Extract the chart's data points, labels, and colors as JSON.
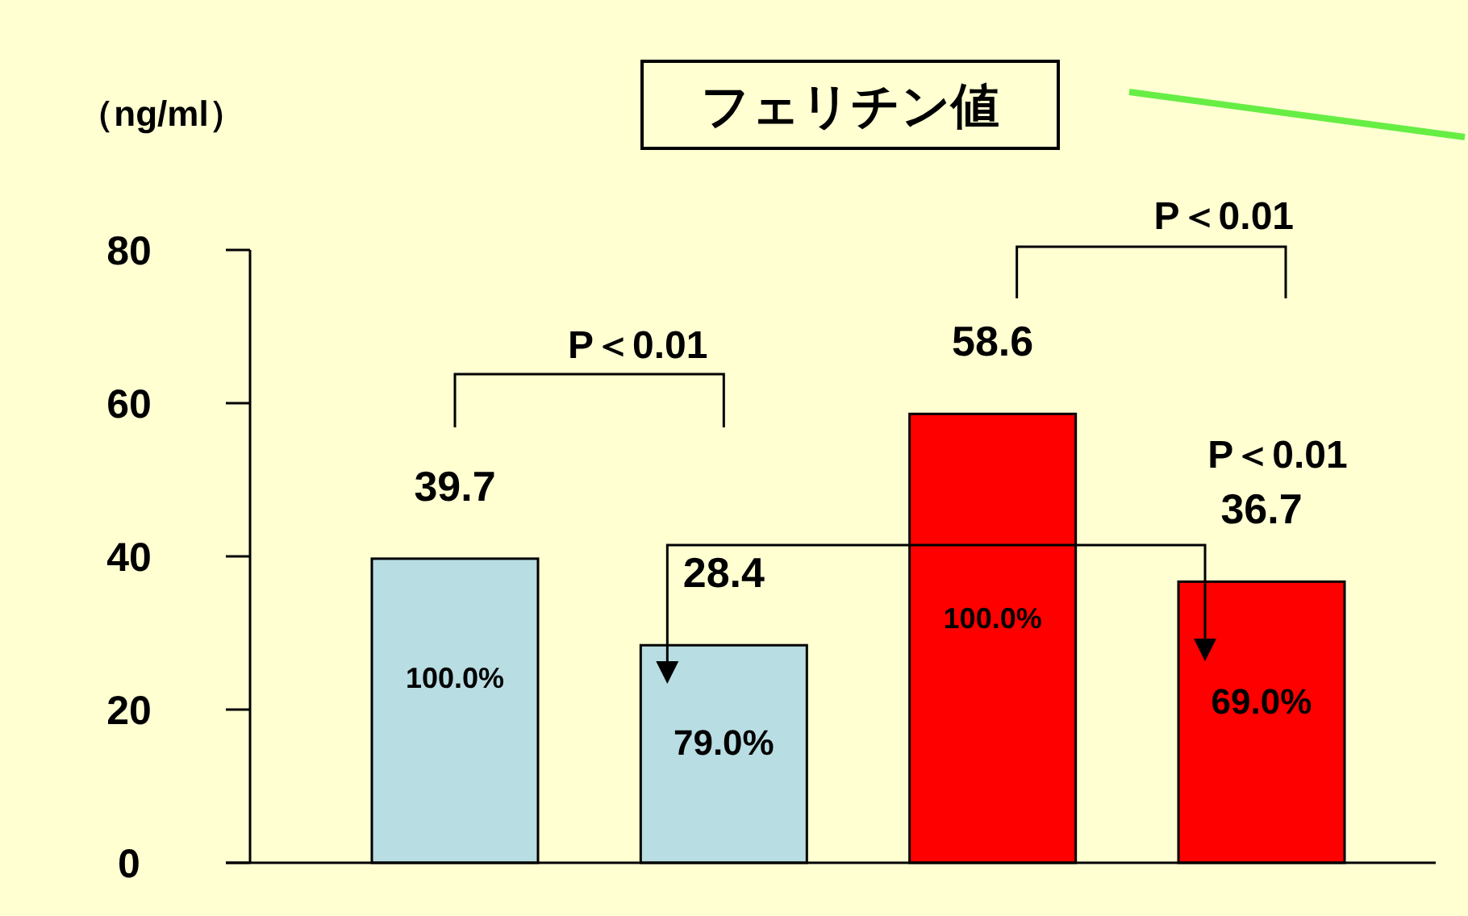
{
  "chart_data": {
    "type": "bar",
    "title": "フェリチン値",
    "ylabel": "（ng/ml）",
    "categories": [
      null,
      null,
      null,
      null
    ],
    "values": [
      39.7,
      28.4,
      58.6,
      36.7
    ],
    "colors": [
      "#b8dde2",
      "#b8dde2",
      "#ff0000",
      "#ff0000"
    ],
    "value_labels": [
      "39.7",
      "28.4",
      "58.6",
      "36.7"
    ],
    "ylim": [
      0,
      80
    ],
    "yticks": [
      0,
      20,
      40,
      60,
      80
    ],
    "grid": false,
    "tick_labels": "y",
    "annotations": [
      "100.0%",
      "79.0%",
      "100.0%",
      "69.0%",
      "P＜0.01",
      "P＜0.01",
      "P＜0.01"
    ]
  }
}
